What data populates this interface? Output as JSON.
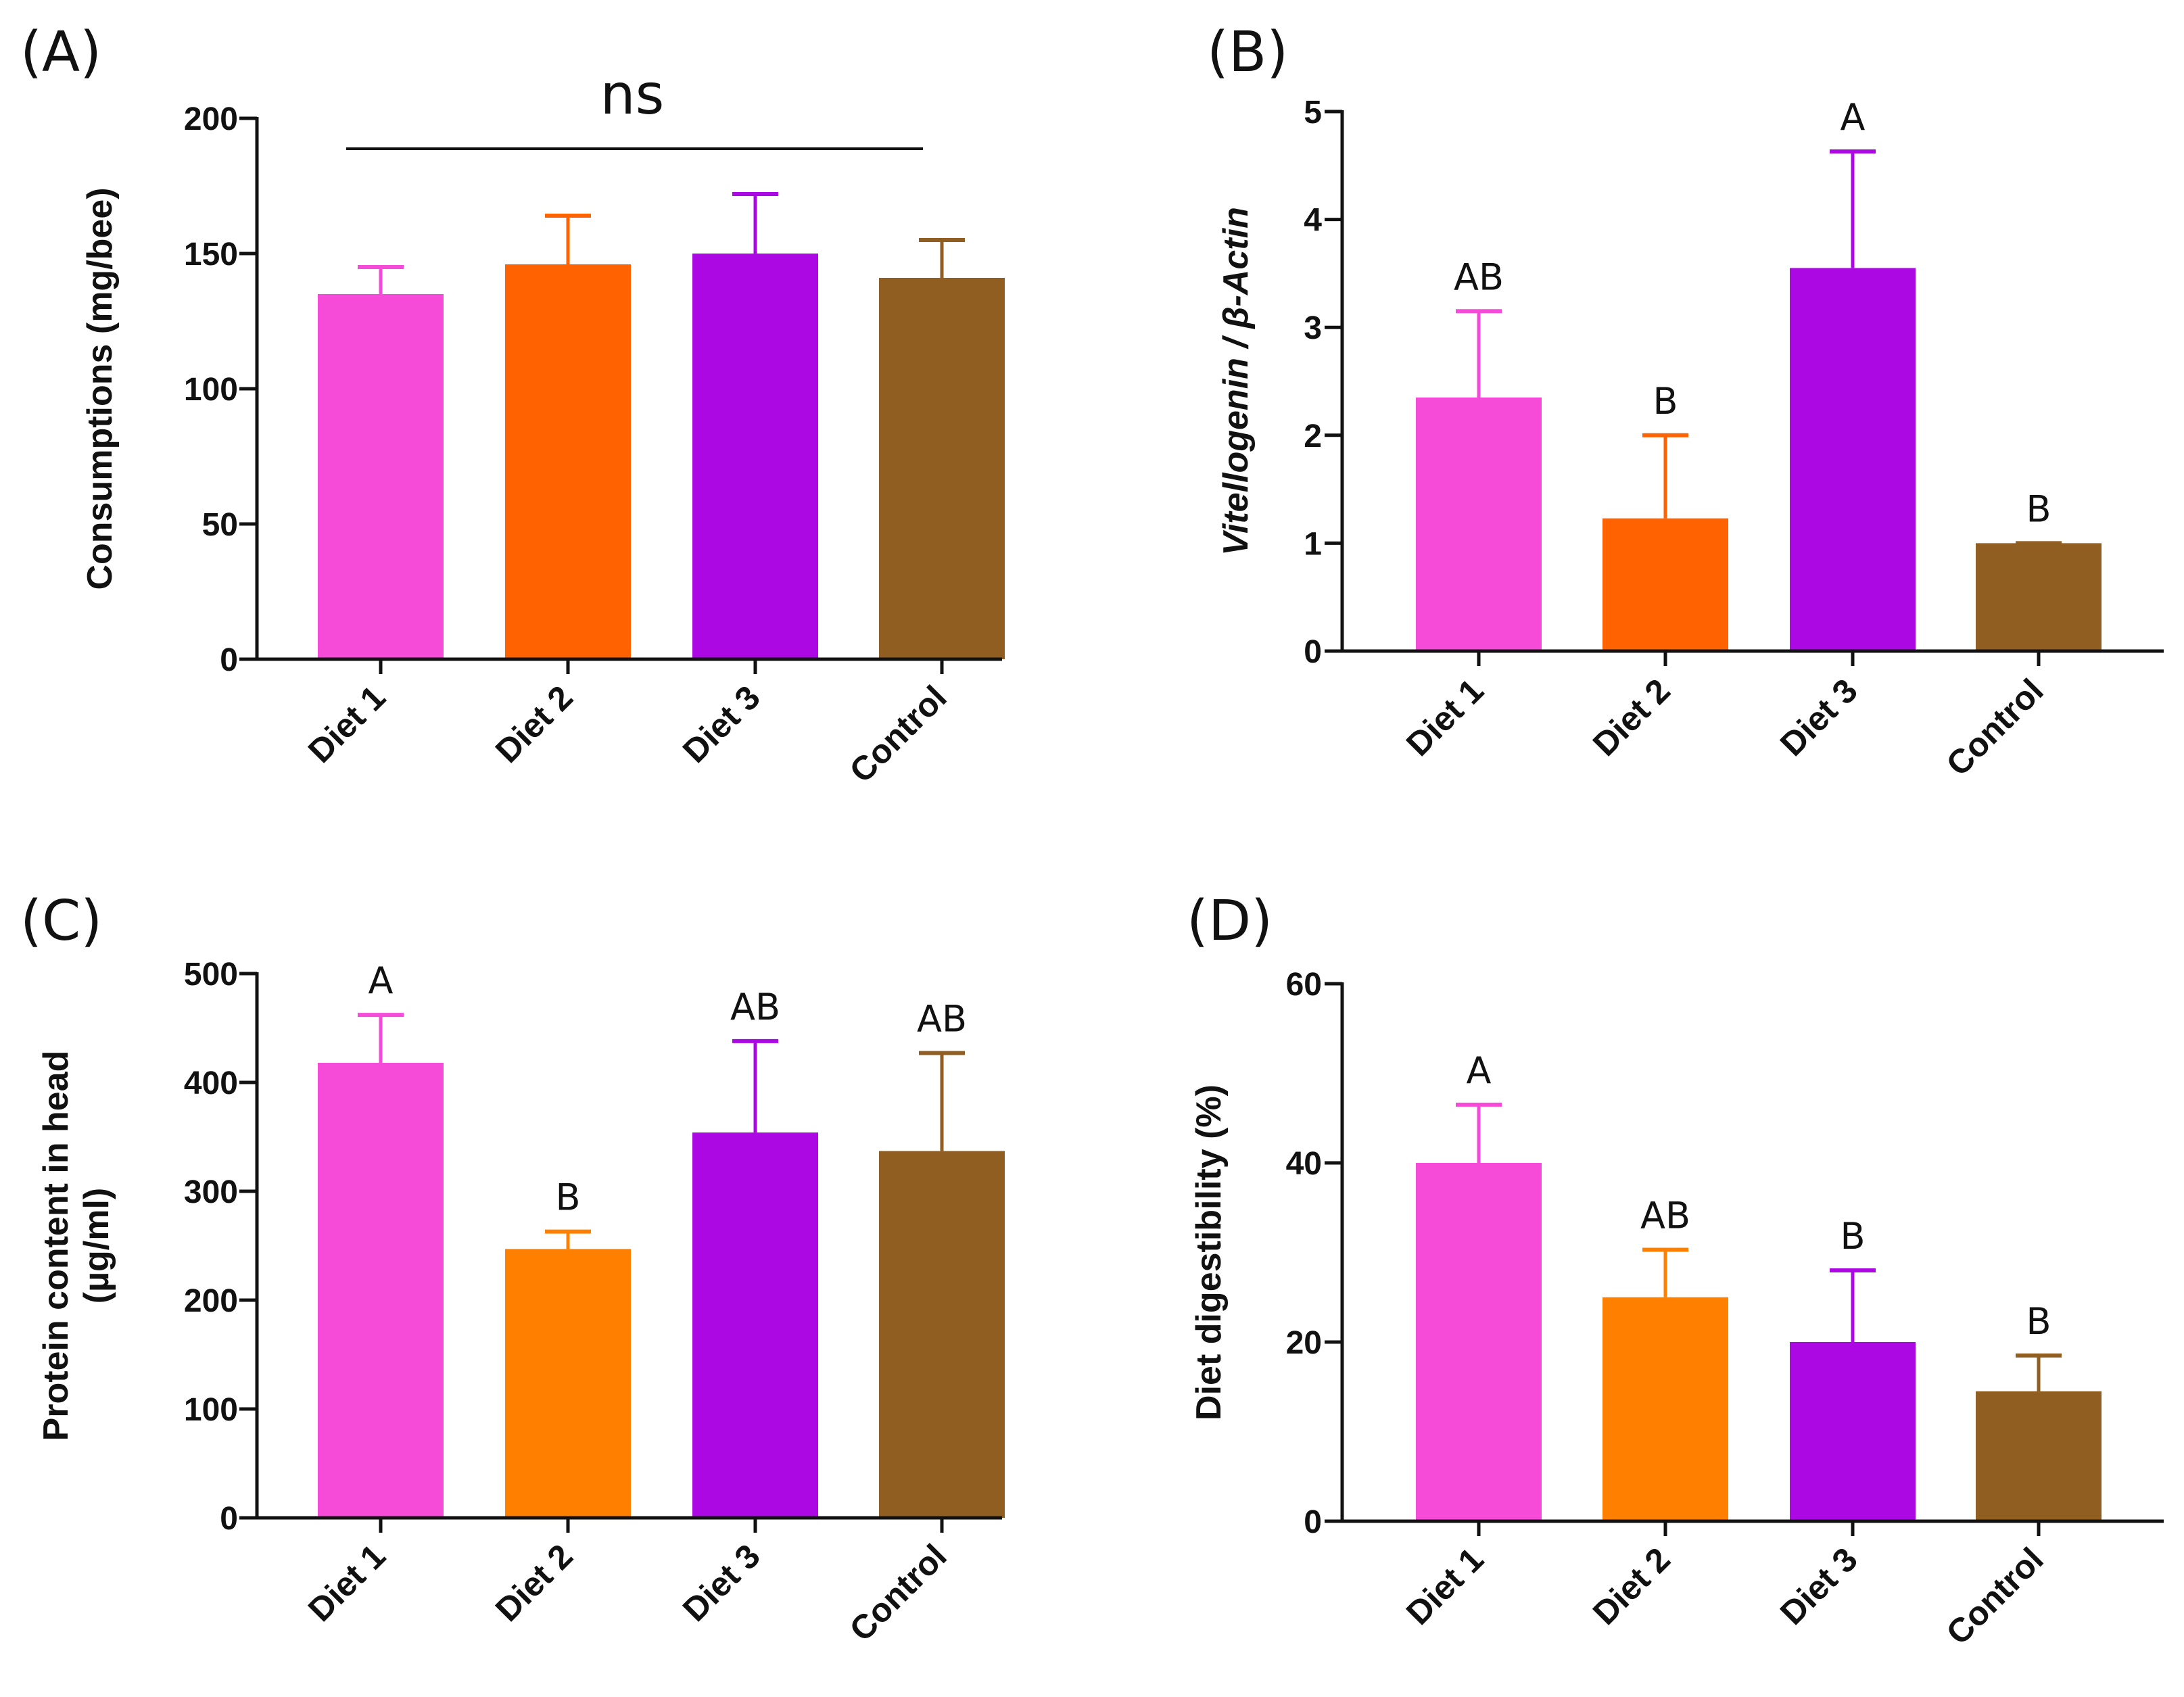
{
  "chart_data": [
    {
      "type": "bar",
      "panel_label": "(A)",
      "categories": [
        "Diet 1",
        "Diet 2",
        "Diet 3",
        "Control"
      ],
      "values": [
        135,
        146,
        150,
        141
      ],
      "error_upper": [
        145,
        164,
        172,
        155
      ],
      "colors": [
        "#f54bd8",
        "#ff6200",
        "#ac08e4",
        "#8f5e20"
      ],
      "annotations": [],
      "bracket_label": "ns",
      "ylabel": "Consumptions (mg/bee)",
      "ylabel_parts": [],
      "ylim": [
        0,
        200
      ],
      "yticks": [
        0,
        50,
        100,
        150,
        200
      ]
    },
    {
      "type": "bar",
      "panel_label": "(B)",
      "categories": [
        "Diet 1",
        "Diet 2",
        "Diet 3",
        "Control"
      ],
      "values": [
        2.35,
        1.23,
        3.55,
        1.0
      ],
      "error_upper": [
        3.15,
        2.0,
        4.63,
        1.0
      ],
      "colors": [
        "#f54bd8",
        "#ff6200",
        "#ac08e4",
        "#8f5e20"
      ],
      "annotations": [
        "AB",
        "B",
        "A",
        "B"
      ],
      "ylabel": "Vitellogenin / β-Actin",
      "ylabel_parts": [
        "Vitellogenin / β-Actin"
      ],
      "ylim": [
        0,
        5
      ],
      "yticks": [
        0,
        1,
        2,
        3,
        4,
        5
      ]
    },
    {
      "type": "bar",
      "panel_label": "(C)",
      "categories": [
        "Diet 1",
        "Diet 2",
        "Diet 3",
        "Control"
      ],
      "values": [
        418,
        247,
        354,
        337
      ],
      "error_upper": [
        462,
        263,
        438,
        427
      ],
      "colors": [
        "#f54bd8",
        "#ff8000",
        "#ac08e4",
        "#8f5e20"
      ],
      "annotations": [
        "A",
        "B",
        "AB",
        "AB"
      ],
      "ylabel": "Protein  content in head (µg/ml)",
      "ylabel_parts": [
        "Protein  content in head",
        "(µg/ml)"
      ],
      "ylim": [
        0,
        500
      ],
      "yticks": [
        0,
        100,
        200,
        300,
        400,
        500
      ]
    },
    {
      "type": "bar",
      "panel_label": "(D)",
      "categories": [
        "Diet 1",
        "Diet 2",
        "Diet 3",
        "Control"
      ],
      "values": [
        40,
        25,
        20,
        14.5
      ],
      "error_upper": [
        46.5,
        30.3,
        28,
        18.5
      ],
      "colors": [
        "#f54bd8",
        "#ff8000",
        "#ac08e4",
        "#8f5e20"
      ],
      "annotations": [
        "A",
        "AB",
        "B",
        "B"
      ],
      "ylabel": "Diet digestibility (%)",
      "ylabel_parts": [
        "Diet digestibility (%)"
      ],
      "ylim": [
        0,
        60
      ],
      "yticks": [
        0,
        20,
        40,
        60
      ]
    }
  ]
}
